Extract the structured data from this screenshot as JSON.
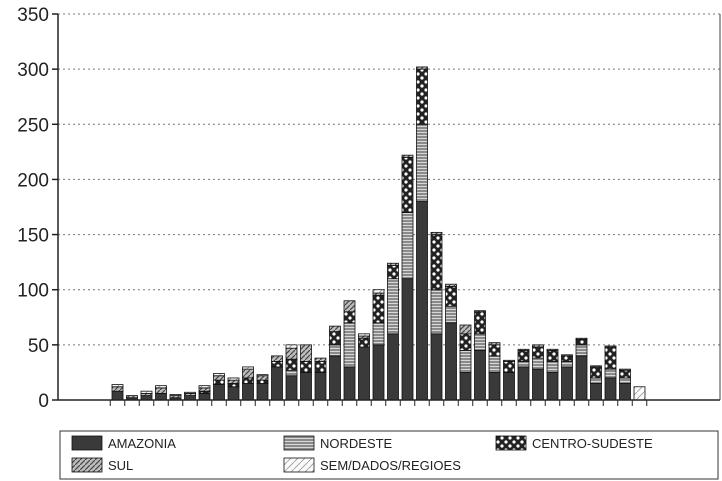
{
  "chart_data": {
    "type": "bar",
    "stacked": true,
    "ylim": [
      0,
      350
    ],
    "yticks": [
      0,
      50,
      100,
      150,
      200,
      250,
      300,
      350
    ],
    "grid": "horizontal dotted",
    "legend_position": "bottom",
    "series": [
      {
        "name": "AMAZONIA",
        "pattern": "solid-dark",
        "values": [
          8,
          2,
          4,
          6,
          2,
          4,
          6,
          14,
          12,
          15,
          15,
          30,
          22,
          25,
          25,
          40,
          30,
          48,
          50,
          60,
          110,
          180,
          60,
          70,
          25,
          45,
          25,
          25,
          30,
          28,
          25,
          30,
          40,
          15,
          20,
          15,
          0
        ]
      },
      {
        "name": "NORDESTE",
        "pattern": "horizontal-lines",
        "values": [
          0,
          0,
          0,
          0,
          0,
          0,
          0,
          0,
          0,
          0,
          0,
          0,
          5,
          0,
          0,
          10,
          40,
          0,
          20,
          50,
          60,
          70,
          40,
          15,
          20,
          15,
          15,
          0,
          5,
          10,
          10,
          5,
          10,
          5,
          8,
          5,
          0
        ]
      },
      {
        "name": "CENTRO-SUDESTE",
        "pattern": "dots-dark",
        "values": [
          0,
          0,
          0,
          0,
          0,
          0,
          2,
          4,
          3,
          5,
          3,
          5,
          10,
          10,
          10,
          12,
          10,
          8,
          25,
          12,
          50,
          50,
          50,
          18,
          15,
          20,
          10,
          10,
          10,
          10,
          10,
          5,
          5,
          10,
          20,
          7,
          0
        ]
      },
      {
        "name": "SUL",
        "pattern": "diagonal-lines",
        "values": [
          4,
          2,
          2,
          5,
          2,
          2,
          3,
          4,
          3,
          8,
          4,
          5,
          10,
          15,
          3,
          5,
          10,
          2,
          2,
          2,
          2,
          2,
          2,
          2,
          8,
          1,
          2,
          1,
          1,
          2,
          1,
          1,
          1,
          1,
          1,
          1,
          0
        ]
      },
      {
        "name": "SEM/DADOS/REGIOES",
        "pattern": "light-hatch",
        "values": [
          2,
          0,
          2,
          2,
          1,
          1,
          2,
          2,
          2,
          2,
          1,
          0,
          3,
          0,
          0,
          0,
          0,
          2,
          3,
          0,
          0,
          0,
          0,
          0,
          0,
          0,
          0,
          0,
          0,
          0,
          0,
          0,
          0,
          0,
          0,
          0,
          12
        ]
      }
    ]
  }
}
